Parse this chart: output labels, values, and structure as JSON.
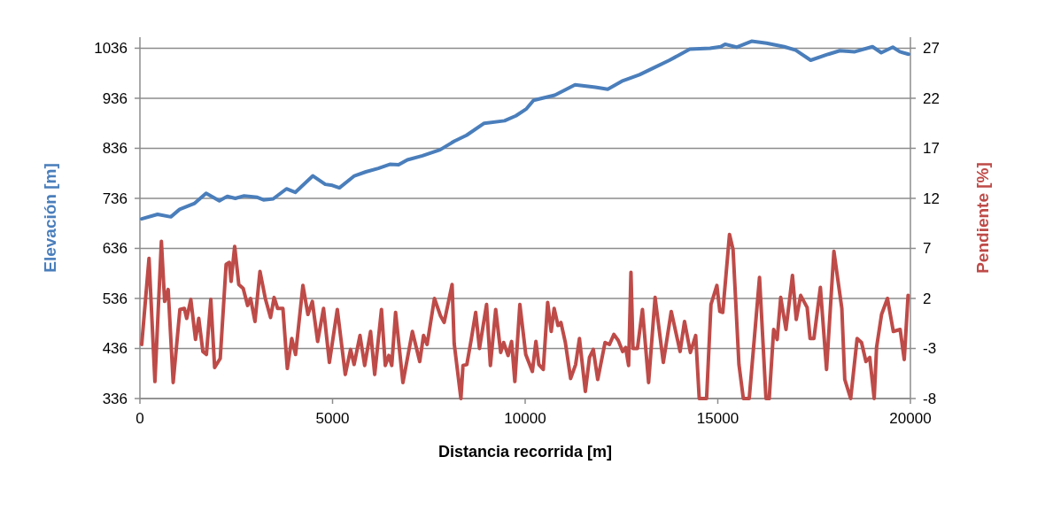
{
  "chart_data": {
    "type": "line",
    "xlabel": "Distancia recorrida [m]",
    "ylabel": "Elevación [m]",
    "y2label": "Pendiente [%]",
    "xlim": [
      0,
      20000
    ],
    "xticks": [
      0,
      5000,
      10000,
      15000,
      20000
    ],
    "ylim": [
      336,
      1058
    ],
    "yticks": [
      336,
      436,
      536,
      636,
      736,
      836,
      936,
      1036
    ],
    "y2lim": [
      -8,
      28.1
    ],
    "y2ticks": [
      -8,
      -3,
      2,
      7,
      12,
      17,
      22,
      27
    ],
    "grid": "y",
    "line_style": "solid",
    "marker": "none",
    "series": [
      {
        "color": "#4a7ebb",
        "x": [
          46,
          458,
          802,
          1031,
          1420,
          1718,
          2062,
          2268,
          2475,
          2704,
          3048,
          3208,
          3460,
          3803,
          4032,
          4490,
          4811,
          4994,
          5178,
          5568,
          5866,
          6187,
          6485,
          6714,
          6943,
          7333,
          7791,
          8157,
          8478,
          8936,
          9463,
          9760,
          10034,
          10218,
          10768,
          11295,
          11822,
          12143,
          12509,
          12967,
          13288,
          13746,
          14273,
          14800,
          15075,
          15189,
          15487,
          15877,
          16267,
          16724,
          17022,
          17411,
          17869,
          18167,
          18557,
          19015,
          19244,
          19542,
          19725,
          19954
        ],
        "values": [
          695,
          704,
          699,
          714,
          726,
          746,
          731,
          740,
          736,
          741,
          738,
          733,
          735,
          755,
          748,
          781,
          764,
          762,
          757,
          781,
          789,
          796,
          804,
          803,
          813,
          821,
          833,
          850,
          862,
          886,
          891,
          901,
          915,
          932,
          942,
          963,
          958,
          954,
          970,
          983,
          995,
          1012,
          1034,
          1036,
          1039,
          1044,
          1038,
          1050,
          1046,
          1039,
          1032,
          1012,
          1024,
          1031,
          1029,
          1039,
          1027,
          1038,
          1029,
          1024
        ]
      },
      {
        "color": "#be4b48",
        "axis": "y2",
        "x": [
          46,
          236,
          389,
          557,
          641,
          733,
          863,
          1038,
          1153,
          1214,
          1321,
          1443,
          1527,
          1634,
          1726,
          1840,
          1939,
          2084,
          2237,
          2321,
          2367,
          2459,
          2566,
          2681,
          2795,
          2872,
          2986,
          3116,
          3254,
          3391,
          3483,
          3575,
          3712,
          3826,
          3941,
          4040,
          4231,
          4361,
          4475,
          4613,
          4766,
          4918,
          5124,
          5330,
          5468,
          5559,
          5712,
          5834,
          5987,
          6094,
          6270,
          6369,
          6461,
          6537,
          6636,
          6827,
          7072,
          7263,
          7362,
          7454,
          7645,
          7798,
          7897,
          8103,
          8157,
          8332,
          8386,
          8486,
          8600,
          8715,
          8814,
          8998,
          9097,
          9235,
          9365,
          9441,
          9556,
          9648,
          9732,
          9862,
          10015,
          10187,
          10279,
          10355,
          10470,
          10584,
          10676,
          10752,
          10852,
          10928,
          11043,
          11180,
          11310,
          11409,
          11562,
          11669,
          11768,
          11883,
          12074,
          12188,
          12303,
          12417,
          12532,
          12608,
          12685,
          12746,
          12799,
          12914,
          13044,
          13204,
          13372,
          13586,
          13792,
          14021,
          14136,
          14289,
          14426,
          14518,
          14709,
          14823,
          14976,
          15053,
          15129,
          15304,
          15396,
          15549,
          15663,
          15816,
          16083,
          16251,
          16335,
          16450,
          16541,
          16633,
          16770,
          16938,
          17037,
          17151,
          17319,
          17396,
          17495,
          17663,
          17823,
          18014,
          18220,
          18296,
          18449,
          18617,
          18731,
          18846,
          18945,
          19060,
          19121,
          19251,
          19404,
          19557,
          19733,
          19840,
          19939
        ],
        "values": [
          -2.6,
          6.0,
          -6.3,
          7.7,
          1.7,
          2.9,
          -6.4,
          0.9,
          1.0,
          0.0,
          1.9,
          -2.1,
          0.0,
          -3.3,
          -3.6,
          1.9,
          -4.9,
          -4.0,
          5.4,
          5.6,
          3.7,
          7.2,
          3.4,
          3.0,
          1.3,
          2.0,
          -0.3,
          4.7,
          2.0,
          0.1,
          2.1,
          1.0,
          1.0,
          -5.0,
          -2.0,
          -3.6,
          3.3,
          0.4,
          1.7,
          -2.3,
          1.0,
          -4.4,
          0.9,
          -5.6,
          -3.1,
          -4.6,
          -1.7,
          -4.7,
          -1.3,
          -5.6,
          0.9,
          -4.7,
          -3.7,
          -4.7,
          0.6,
          -6.4,
          -1.3,
          -4.3,
          -1.7,
          -2.6,
          2.0,
          0.3,
          -0.4,
          3.4,
          -2.5,
          -8,
          -4.7,
          -4.6,
          -2.1,
          0.6,
          -3.0,
          1.4,
          -4.7,
          0.9,
          -3.4,
          -2.4,
          -3.7,
          -2.3,
          -6.3,
          1.4,
          -3.6,
          -5.3,
          -2.3,
          -4.6,
          -5.1,
          1.6,
          -1.3,
          1.0,
          -0.7,
          -0.4,
          -2.4,
          -6.0,
          -4.6,
          -2.0,
          -7.3,
          -3.9,
          -3.1,
          -6.1,
          -2.4,
          -2.6,
          -1.6,
          -2.2,
          -3.3,
          -2.9,
          -4.7,
          4.6,
          -3.0,
          -3.0,
          0.9,
          -6.4,
          2.1,
          -4.4,
          0.7,
          -3.3,
          -0.3,
          -3.4,
          -1.7,
          -8,
          -8,
          1.4,
          3.3,
          0.7,
          0.6,
          8.4,
          6.9,
          -4.6,
          -8,
          -8,
          4.1,
          -8,
          -8,
          -1.1,
          -2.1,
          2.1,
          -1.1,
          4.3,
          -0.1,
          2.3,
          1.1,
          -2.0,
          -2.0,
          3.1,
          -5.1,
          6.7,
          1.0,
          -6.1,
          -8,
          -2.0,
          -2.4,
          -4.3,
          -3.9,
          -8,
          -2.9,
          0.4,
          2.0,
          -1.3,
          -1.1,
          -4.1,
          2.3
        ]
      }
    ]
  }
}
